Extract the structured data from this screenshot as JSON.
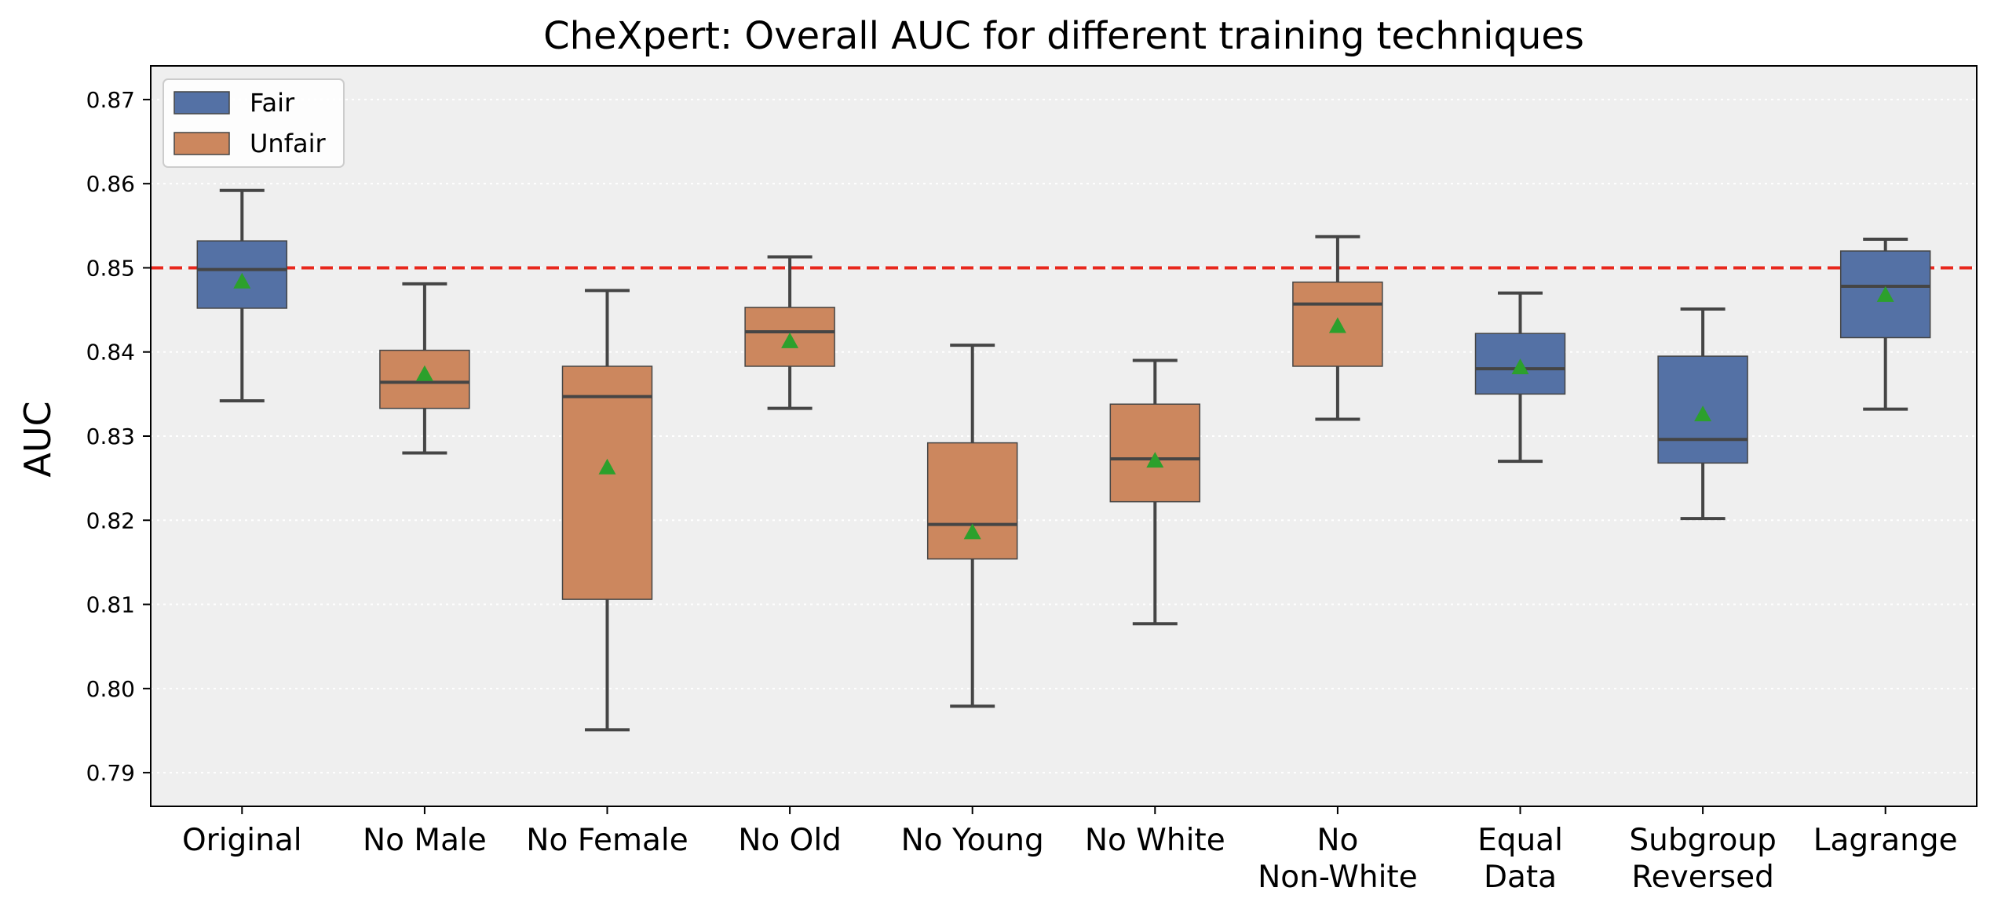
{
  "chart_data": {
    "type": "box",
    "title": "CheXpert: Overall AUC for different training techniques",
    "ylabel": "AUC",
    "xlabel": "",
    "ylim": [
      0.786,
      0.874
    ],
    "yticks": [
      "0.79",
      "0.80",
      "0.81",
      "0.82",
      "0.83",
      "0.84",
      "0.85",
      "0.86",
      "0.87"
    ],
    "grid": "horizontal-dotted",
    "reference_line": {
      "y": 0.85,
      "style": "dashed",
      "color": "#e8271c"
    },
    "legend": {
      "position": "top-left",
      "entries": [
        {
          "name": "Fair",
          "color": "#5471a5"
        },
        {
          "name": "Unfair",
          "color": "#cc875e"
        }
      ]
    },
    "mean_marker_color": "#2ca02c",
    "categories": [
      {
        "label": [
          "Original"
        ],
        "group": "Fair",
        "whisker_low": 0.8342,
        "q1": 0.8452,
        "median": 0.8498,
        "q3": 0.8532,
        "whisker_high": 0.8592,
        "mean": 0.8483
      },
      {
        "label": [
          "No Male"
        ],
        "group": "Unfair",
        "whisker_low": 0.828,
        "q1": 0.8333,
        "median": 0.8364,
        "q3": 0.8402,
        "whisker_high": 0.8481,
        "mean": 0.8373
      },
      {
        "label": [
          "No Female"
        ],
        "group": "Unfair",
        "whisker_low": 0.7951,
        "q1": 0.8106,
        "median": 0.8347,
        "q3": 0.8383,
        "whisker_high": 0.8473,
        "mean": 0.8262
      },
      {
        "label": [
          "No Old"
        ],
        "group": "Unfair",
        "whisker_low": 0.8333,
        "q1": 0.8383,
        "median": 0.8424,
        "q3": 0.8453,
        "whisker_high": 0.8513,
        "mean": 0.8412
      },
      {
        "label": [
          "No Young"
        ],
        "group": "Unfair",
        "whisker_low": 0.7979,
        "q1": 0.8154,
        "median": 0.8195,
        "q3": 0.8292,
        "whisker_high": 0.8408,
        "mean": 0.8185
      },
      {
        "label": [
          "No White"
        ],
        "group": "Unfair",
        "whisker_low": 0.8077,
        "q1": 0.8222,
        "median": 0.8273,
        "q3": 0.8338,
        "whisker_high": 0.839,
        "mean": 0.827
      },
      {
        "label": [
          "No",
          "Non-White"
        ],
        "group": "Unfair",
        "whisker_low": 0.832,
        "q1": 0.8383,
        "median": 0.8457,
        "q3": 0.8483,
        "whisker_high": 0.8537,
        "mean": 0.843
      },
      {
        "label": [
          "Equal",
          "Data"
        ],
        "group": "Fair",
        "whisker_low": 0.827,
        "q1": 0.835,
        "median": 0.838,
        "q3": 0.8422,
        "whisker_high": 0.847,
        "mean": 0.8381
      },
      {
        "label": [
          "Subgroup",
          "Reversed"
        ],
        "group": "Fair",
        "whisker_low": 0.8202,
        "q1": 0.8268,
        "median": 0.8296,
        "q3": 0.8395,
        "whisker_high": 0.8451,
        "mean": 0.8325
      },
      {
        "label": [
          "Lagrange"
        ],
        "group": "Fair",
        "whisker_low": 0.8332,
        "q1": 0.8417,
        "median": 0.8478,
        "q3": 0.852,
        "whisker_high": 0.8534,
        "mean": 0.8467
      }
    ]
  }
}
